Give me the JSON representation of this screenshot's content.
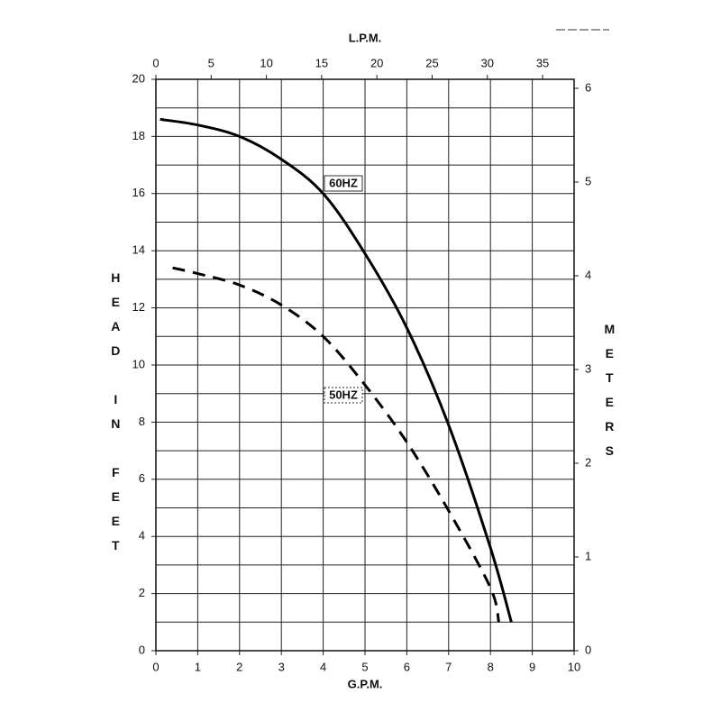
{
  "chart_data": {
    "type": "line",
    "x_label": "G.P.M.",
    "x2_label": "L.P.M.",
    "y_label": "HEAD IN FEET",
    "y2_label": "METERS",
    "xlim": [
      0,
      10
    ],
    "xticks": [
      0,
      1,
      2,
      3,
      4,
      5,
      6,
      7,
      8,
      9,
      10
    ],
    "x2lim": [
      0,
      37.85
    ],
    "x2ticks": [
      0,
      5,
      10,
      15,
      20,
      25,
      30,
      35
    ],
    "ylim": [
      0,
      20
    ],
    "yticks": [
      0,
      2,
      4,
      6,
      8,
      10,
      12,
      14,
      16,
      18,
      20
    ],
    "y_minor_ticks": [
      1,
      3,
      5,
      7,
      9,
      11,
      13,
      15,
      17,
      19
    ],
    "y2lim": [
      0,
      6.096
    ],
    "y2ticks": [
      0,
      1,
      2,
      3,
      4,
      5,
      6
    ],
    "grid": true,
    "series": [
      {
        "name": "60HZ",
        "color": "#000000",
        "dash": false,
        "x": [
          0.1,
          1,
          2,
          3,
          4,
          5,
          6,
          7,
          8,
          8.5
        ],
        "values": [
          18.6,
          18.4,
          18.0,
          17.2,
          16.0,
          13.9,
          11.3,
          7.9,
          3.6,
          1.0
        ]
      },
      {
        "name": "50HZ",
        "color": "#000000",
        "dash": true,
        "x": [
          0.4,
          1,
          2,
          3,
          4,
          5,
          6,
          7,
          8,
          8.2
        ],
        "values": [
          13.4,
          13.2,
          12.8,
          12.1,
          11.0,
          9.3,
          7.3,
          4.9,
          2.2,
          1.0
        ]
      }
    ]
  }
}
